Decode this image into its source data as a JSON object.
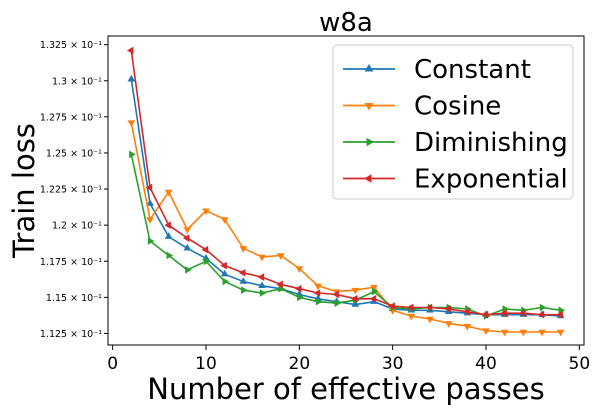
{
  "chart_data": {
    "type": "line",
    "title": "w8a",
    "xlabel": "Number of effective passes",
    "ylabel": "Train loss",
    "xlim": [
      -0.5,
      50.5
    ],
    "ylim": [
      0.1117,
      0.1331
    ],
    "x_ticks": [
      0,
      10,
      20,
      30,
      40,
      50
    ],
    "x_tick_labels": [
      "0",
      "10",
      "20",
      "30",
      "40",
      "50"
    ],
    "y_ticks": [
      0.1125,
      0.115,
      0.1175,
      0.12,
      0.1225,
      0.125,
      0.1275,
      0.13,
      0.1325
    ],
    "y_tick_labels": [
      "1.125 × 10⁻¹",
      "1.15 × 10⁻¹",
      "1.175 × 10⁻¹",
      "1.2 × 10⁻¹",
      "1.225 × 10⁻¹",
      "1.25 × 10⁻¹",
      "1.275 × 10⁻¹",
      "1.3 × 10⁻¹",
      "1.325 × 10⁻¹"
    ],
    "grid": false,
    "legend_position": "top-right",
    "x": [
      2,
      4,
      6,
      8,
      10,
      12,
      14,
      16,
      18,
      20,
      22,
      24,
      26,
      28,
      30,
      32,
      34,
      36,
      38,
      40,
      42,
      44,
      46,
      48
    ],
    "series": [
      {
        "name": "Constant",
        "color": "#1f77b4",
        "marker": "triangle-up",
        "values": [
          0.1301,
          0.1215,
          0.1192,
          0.1184,
          0.1177,
          0.1166,
          0.1161,
          0.1158,
          0.1156,
          0.1152,
          0.1149,
          0.1147,
          0.1145,
          0.1147,
          0.1142,
          0.1141,
          0.1141,
          0.114,
          0.1139,
          0.1138,
          0.1138,
          0.1138,
          0.1138,
          0.1137
        ]
      },
      {
        "name": "Cosine",
        "color": "#ff7f0e",
        "marker": "triangle-down",
        "values": [
          0.1271,
          0.1204,
          0.1223,
          0.1197,
          0.121,
          0.1204,
          0.1184,
          0.1178,
          0.1179,
          0.117,
          0.1158,
          0.1154,
          0.1155,
          0.1157,
          0.1141,
          0.1137,
          0.1135,
          0.1132,
          0.113,
          0.1127,
          0.1126,
          0.1126,
          0.1126,
          0.1126
        ]
      },
      {
        "name": "Diminishing",
        "color": "#2ca02c",
        "marker": "triangle-right",
        "values": [
          0.1249,
          0.1189,
          0.1179,
          0.1169,
          0.1175,
          0.1161,
          0.1155,
          0.1153,
          0.1156,
          0.115,
          0.1147,
          0.1146,
          0.1148,
          0.1154,
          0.1143,
          0.1142,
          0.1143,
          0.1143,
          0.1142,
          0.1137,
          0.1142,
          0.1141,
          0.1143,
          0.1141
        ]
      },
      {
        "name": "Exponential",
        "color": "#d62728",
        "marker": "triangle-left",
        "values": [
          0.1321,
          0.1226,
          0.12,
          0.1191,
          0.1183,
          0.1172,
          0.1167,
          0.1164,
          0.1159,
          0.1156,
          0.1153,
          0.1152,
          0.1149,
          0.1149,
          0.1144,
          0.1143,
          0.1143,
          0.1142,
          0.114,
          0.1138,
          0.1139,
          0.1139,
          0.1138,
          0.1138
        ]
      }
    ]
  }
}
